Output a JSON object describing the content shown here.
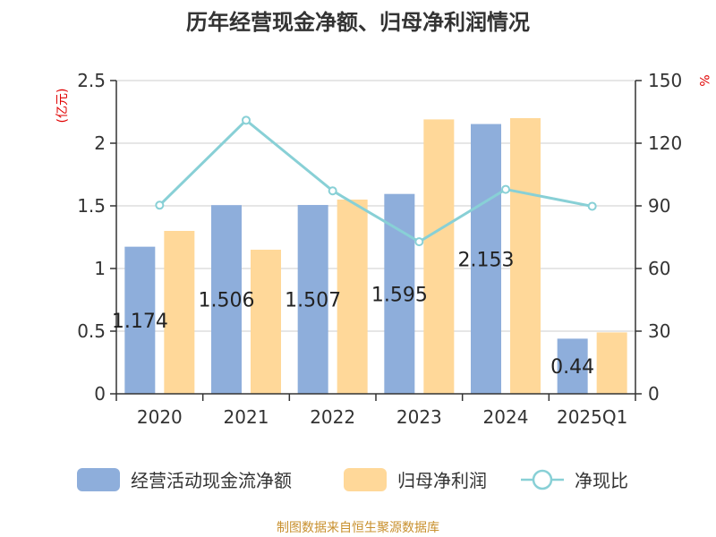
{
  "chart_data": {
    "type": "bar",
    "title": "历年经营现金净额、归母净利润情况",
    "categories": [
      "2020",
      "2021",
      "2022",
      "2023",
      "2024",
      "2025Q1"
    ],
    "series": [
      {
        "name": "经营活动现金流净额",
        "kind": "bar",
        "axis": "left",
        "color": "#8eaedb",
        "values": [
          1.174,
          1.506,
          1.507,
          1.595,
          2.153,
          0.44
        ],
        "labels": [
          "1.174",
          "1.506",
          "1.507",
          "1.595",
          "2.153",
          "0.44"
        ]
      },
      {
        "name": "归母净利润",
        "kind": "bar",
        "axis": "left",
        "color": "#ffd899",
        "values": [
          1.3,
          1.15,
          1.55,
          2.19,
          2.2,
          0.49
        ]
      },
      {
        "name": "净现比",
        "kind": "line",
        "axis": "right",
        "color": "#88d0d6",
        "values": [
          90.3,
          131.0,
          97.2,
          72.8,
          97.9,
          89.8
        ]
      }
    ],
    "y_left": {
      "label": "(亿元)",
      "ylim": [
        0,
        2.5
      ],
      "ticks": [
        "0",
        "0.5",
        "1",
        "1.5",
        "2",
        "2.5"
      ]
    },
    "y_right": {
      "label": "%",
      "ylim": [
        0,
        150
      ],
      "ticks": [
        "0",
        "30",
        "60",
        "90",
        "120",
        "150"
      ]
    },
    "grid": true,
    "legend": "bottom"
  },
  "source_text": "制图数据来自恒生聚源数据库"
}
